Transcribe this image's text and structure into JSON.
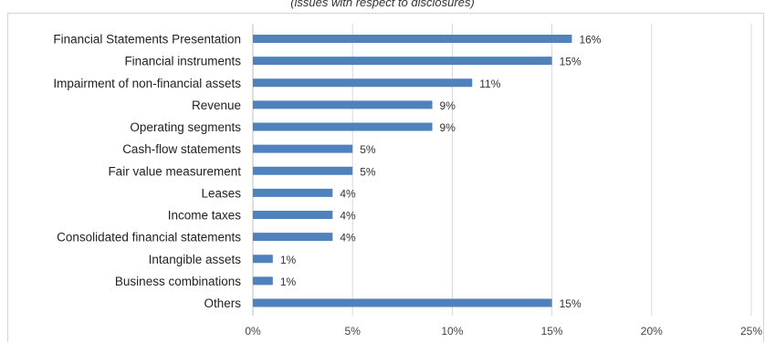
{
  "chart_data": {
    "type": "bar",
    "orientation": "horizontal",
    "subtitle": "(issues with respect to disclosures)",
    "categories": [
      "Financial Statements Presentation",
      "Financial instruments",
      "Impairment of non-financial assets",
      "Revenue",
      "Operating segments",
      "Cash-flow statements",
      "Fair value measurement",
      "Leases",
      "Income taxes",
      "Consolidated financial statements",
      "Intangible assets",
      "Business combinations",
      "Others"
    ],
    "values": [
      16,
      15,
      11,
      9,
      9,
      5,
      5,
      4,
      4,
      4,
      1,
      1,
      15
    ],
    "value_labels": [
      "16%",
      "15%",
      "11%",
      "9%",
      "9%",
      "5%",
      "5%",
      "4%",
      "4%",
      "4%",
      "1%",
      "1%",
      "15%"
    ],
    "xlim": [
      0,
      25
    ],
    "x_ticks": [
      0,
      5,
      10,
      15,
      20,
      25
    ],
    "x_tick_labels": [
      "0%",
      "5%",
      "10%",
      "15%",
      "20%",
      "25%"
    ],
    "grid": "vertical",
    "legend": "none",
    "bar_color": "#4f81bd",
    "grid_color": "#d9d9d9"
  }
}
